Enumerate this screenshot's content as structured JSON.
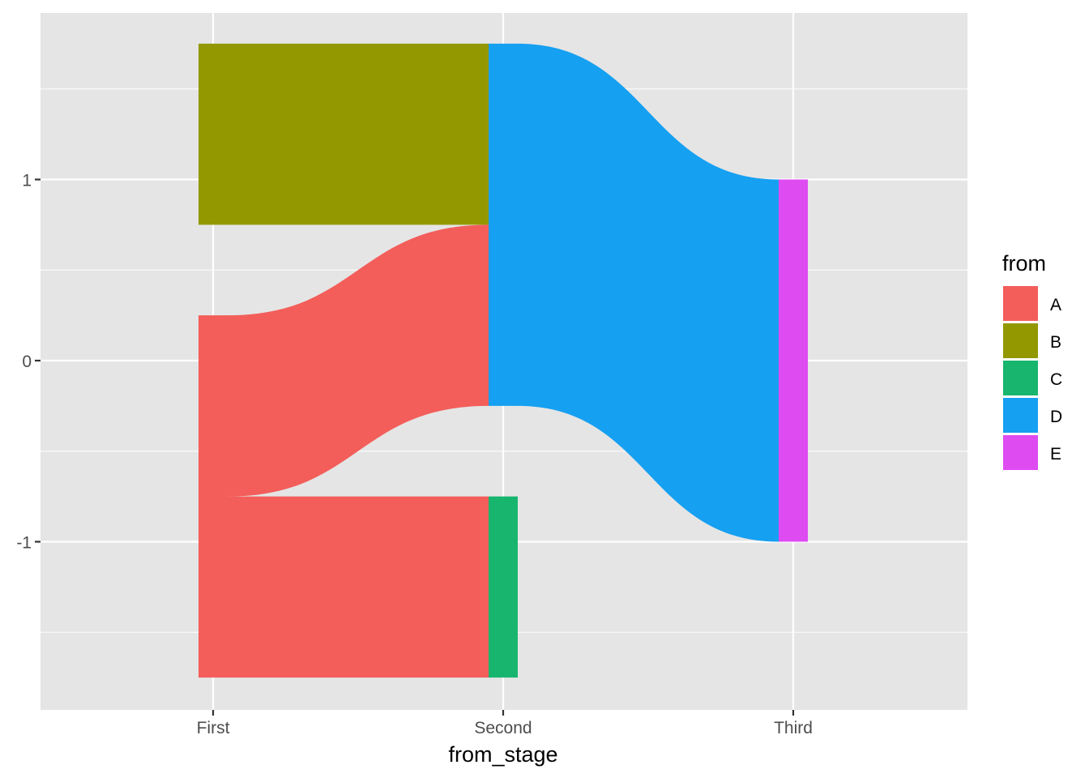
{
  "chart_data": {
    "type": "sankey",
    "title": "",
    "xlabel": "from_stage",
    "ylabel": "",
    "x_categories": [
      "First",
      "Second",
      "Third"
    ],
    "y_ticks": [
      {
        "value": 1,
        "label": "1"
      },
      {
        "value": 0,
        "label": "0"
      },
      {
        "value": -1,
        "label": "-1"
      }
    ],
    "ylim": [
      -1.9,
      1.95
    ],
    "grid": true,
    "legend": {
      "title": "from",
      "position": "right",
      "entries": [
        {
          "label": "A",
          "color": "#F35E5A"
        },
        {
          "label": "B",
          "color": "#939801"
        },
        {
          "label": "C",
          "color": "#17B56E"
        },
        {
          "label": "D",
          "color": "#16A0F1"
        },
        {
          "label": "E",
          "color": "#DE4BF1"
        }
      ]
    },
    "nodes": [
      {
        "node": "B",
        "stage": "First",
        "y_bottom": 0.75,
        "y_top": 1.75
      },
      {
        "node": "A",
        "stage": "First",
        "y_bottom": -1.75,
        "y_top": 0.25
      },
      {
        "node": "D",
        "stage": "Second",
        "y_bottom": -0.25,
        "y_top": 1.75
      },
      {
        "node": "C",
        "stage": "Second",
        "y_bottom": -1.75,
        "y_top": -0.75
      },
      {
        "node": "E",
        "stage": "Third",
        "y_bottom": -1,
        "y_top": 1
      }
    ],
    "flows": [
      {
        "from": "B",
        "from_stage": "First",
        "to_stage": "Second",
        "source": [
          0.75,
          1.75
        ],
        "target": [
          0.75,
          1.75
        ]
      },
      {
        "from": "A",
        "from_stage": "First",
        "to_stage": "Second",
        "source": [
          -0.75,
          0.25
        ],
        "target": [
          -0.25,
          0.75
        ]
      },
      {
        "from": "A",
        "from_stage": "First",
        "to_stage": "Second",
        "source": [
          -1.75,
          -0.75
        ],
        "target": [
          -1.75,
          -0.75
        ]
      },
      {
        "from": "D",
        "from_stage": "Second",
        "to_stage": "Third",
        "source": [
          -0.25,
          1.75
        ],
        "target": [
          -1,
          1
        ]
      }
    ]
  }
}
